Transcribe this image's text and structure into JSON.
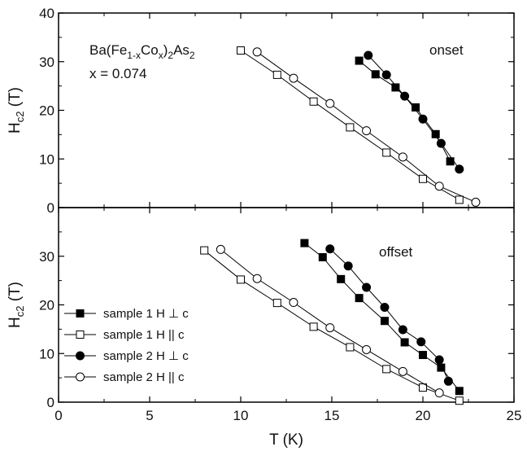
{
  "chart_data": [
    {
      "type": "scatter",
      "panel": "top",
      "annotation": "onset",
      "compound": {
        "line1_prefix": "Ba(Fe",
        "line1_sub1": "1-x",
        "line1_mid": "Co",
        "line1_sub2": "x",
        "line1_close": ")",
        "line1_sub3": "2",
        "line1_suffix": "As",
        "line1_sub4": "2",
        "line2": "x = 0.074"
      },
      "ylabel": {
        "main": "H",
        "sub": "c2",
        "unit": " (T)"
      },
      "xlim": [
        0,
        25
      ],
      "ylim": [
        0,
        40
      ],
      "yticks": [
        "0",
        "10",
        "20",
        "30",
        "40"
      ],
      "series": [
        {
          "name": "sample 1 H ⊥ c",
          "marker": "square",
          "filled": true,
          "x": [
            16.5,
            17.4,
            18.5,
            19.6,
            20.7,
            21.5
          ],
          "y": [
            30.2,
            27.4,
            24.7,
            20.6,
            15.1,
            9.5
          ]
        },
        {
          "name": "sample 1 H || c",
          "marker": "square",
          "filled": false,
          "x": [
            10.0,
            12.0,
            14.0,
            16.0,
            18.0,
            20.0,
            22.0
          ],
          "y": [
            32.3,
            27.3,
            21.8,
            16.5,
            11.3,
            5.9,
            1.6
          ]
        },
        {
          "name": "sample 2 H ⊥ c",
          "marker": "circle",
          "filled": true,
          "x": [
            17.0,
            18.0,
            19.0,
            20.0,
            21.0,
            22.0
          ],
          "y": [
            31.3,
            27.3,
            22.9,
            18.2,
            13.2,
            7.9
          ]
        },
        {
          "name": "sample 2 H || c",
          "marker": "circle",
          "filled": false,
          "x": [
            10.9,
            12.9,
            14.9,
            16.9,
            18.9,
            20.9,
            22.9
          ],
          "y": [
            32.0,
            26.6,
            21.4,
            15.8,
            10.4,
            4.4,
            1.1
          ]
        }
      ]
    },
    {
      "type": "scatter",
      "panel": "bottom",
      "annotation": "offset",
      "ylabel": {
        "main": "H",
        "sub": "c2",
        "unit": " (T)"
      },
      "xlabel": "T (K)",
      "xlim": [
        0,
        25
      ],
      "ylim": [
        0,
        40
      ],
      "xticks": [
        "0",
        "5",
        "10",
        "15",
        "20",
        "25"
      ],
      "yticks": [
        "0",
        "10",
        "20",
        "30"
      ],
      "legend_position": "lower-left",
      "series": [
        {
          "name": "sample 1 H ⊥ c",
          "marker": "square",
          "filled": true,
          "x": [
            13.5,
            14.5,
            15.5,
            16.5,
            17.9,
            19.0,
            20.0,
            21.0,
            22.0
          ],
          "y": [
            32.7,
            29.8,
            25.3,
            21.4,
            16.7,
            12.3,
            9.7,
            7.1,
            2.3
          ]
        },
        {
          "name": "sample 1 H || c",
          "marker": "square",
          "filled": false,
          "x": [
            8.0,
            10.0,
            12.0,
            14.0,
            16.0,
            18.0,
            20.0,
            22.0
          ],
          "y": [
            31.2,
            25.2,
            20.4,
            15.5,
            11.3,
            6.8,
            3.0,
            0.3
          ]
        },
        {
          "name": "sample 2 H ⊥ c",
          "marker": "circle",
          "filled": true,
          "x": [
            14.9,
            15.9,
            16.9,
            17.9,
            18.9,
            19.9,
            20.9,
            21.4
          ],
          "y": [
            31.5,
            28.0,
            23.6,
            19.5,
            14.9,
            12.4,
            8.7,
            4.3
          ]
        },
        {
          "name": "sample 2 H || c",
          "marker": "circle",
          "filled": false,
          "x": [
            8.9,
            10.9,
            12.9,
            14.9,
            16.9,
            18.9,
            20.9
          ],
          "y": [
            31.4,
            25.4,
            20.5,
            15.3,
            10.8,
            6.3,
            1.9
          ]
        }
      ]
    }
  ]
}
